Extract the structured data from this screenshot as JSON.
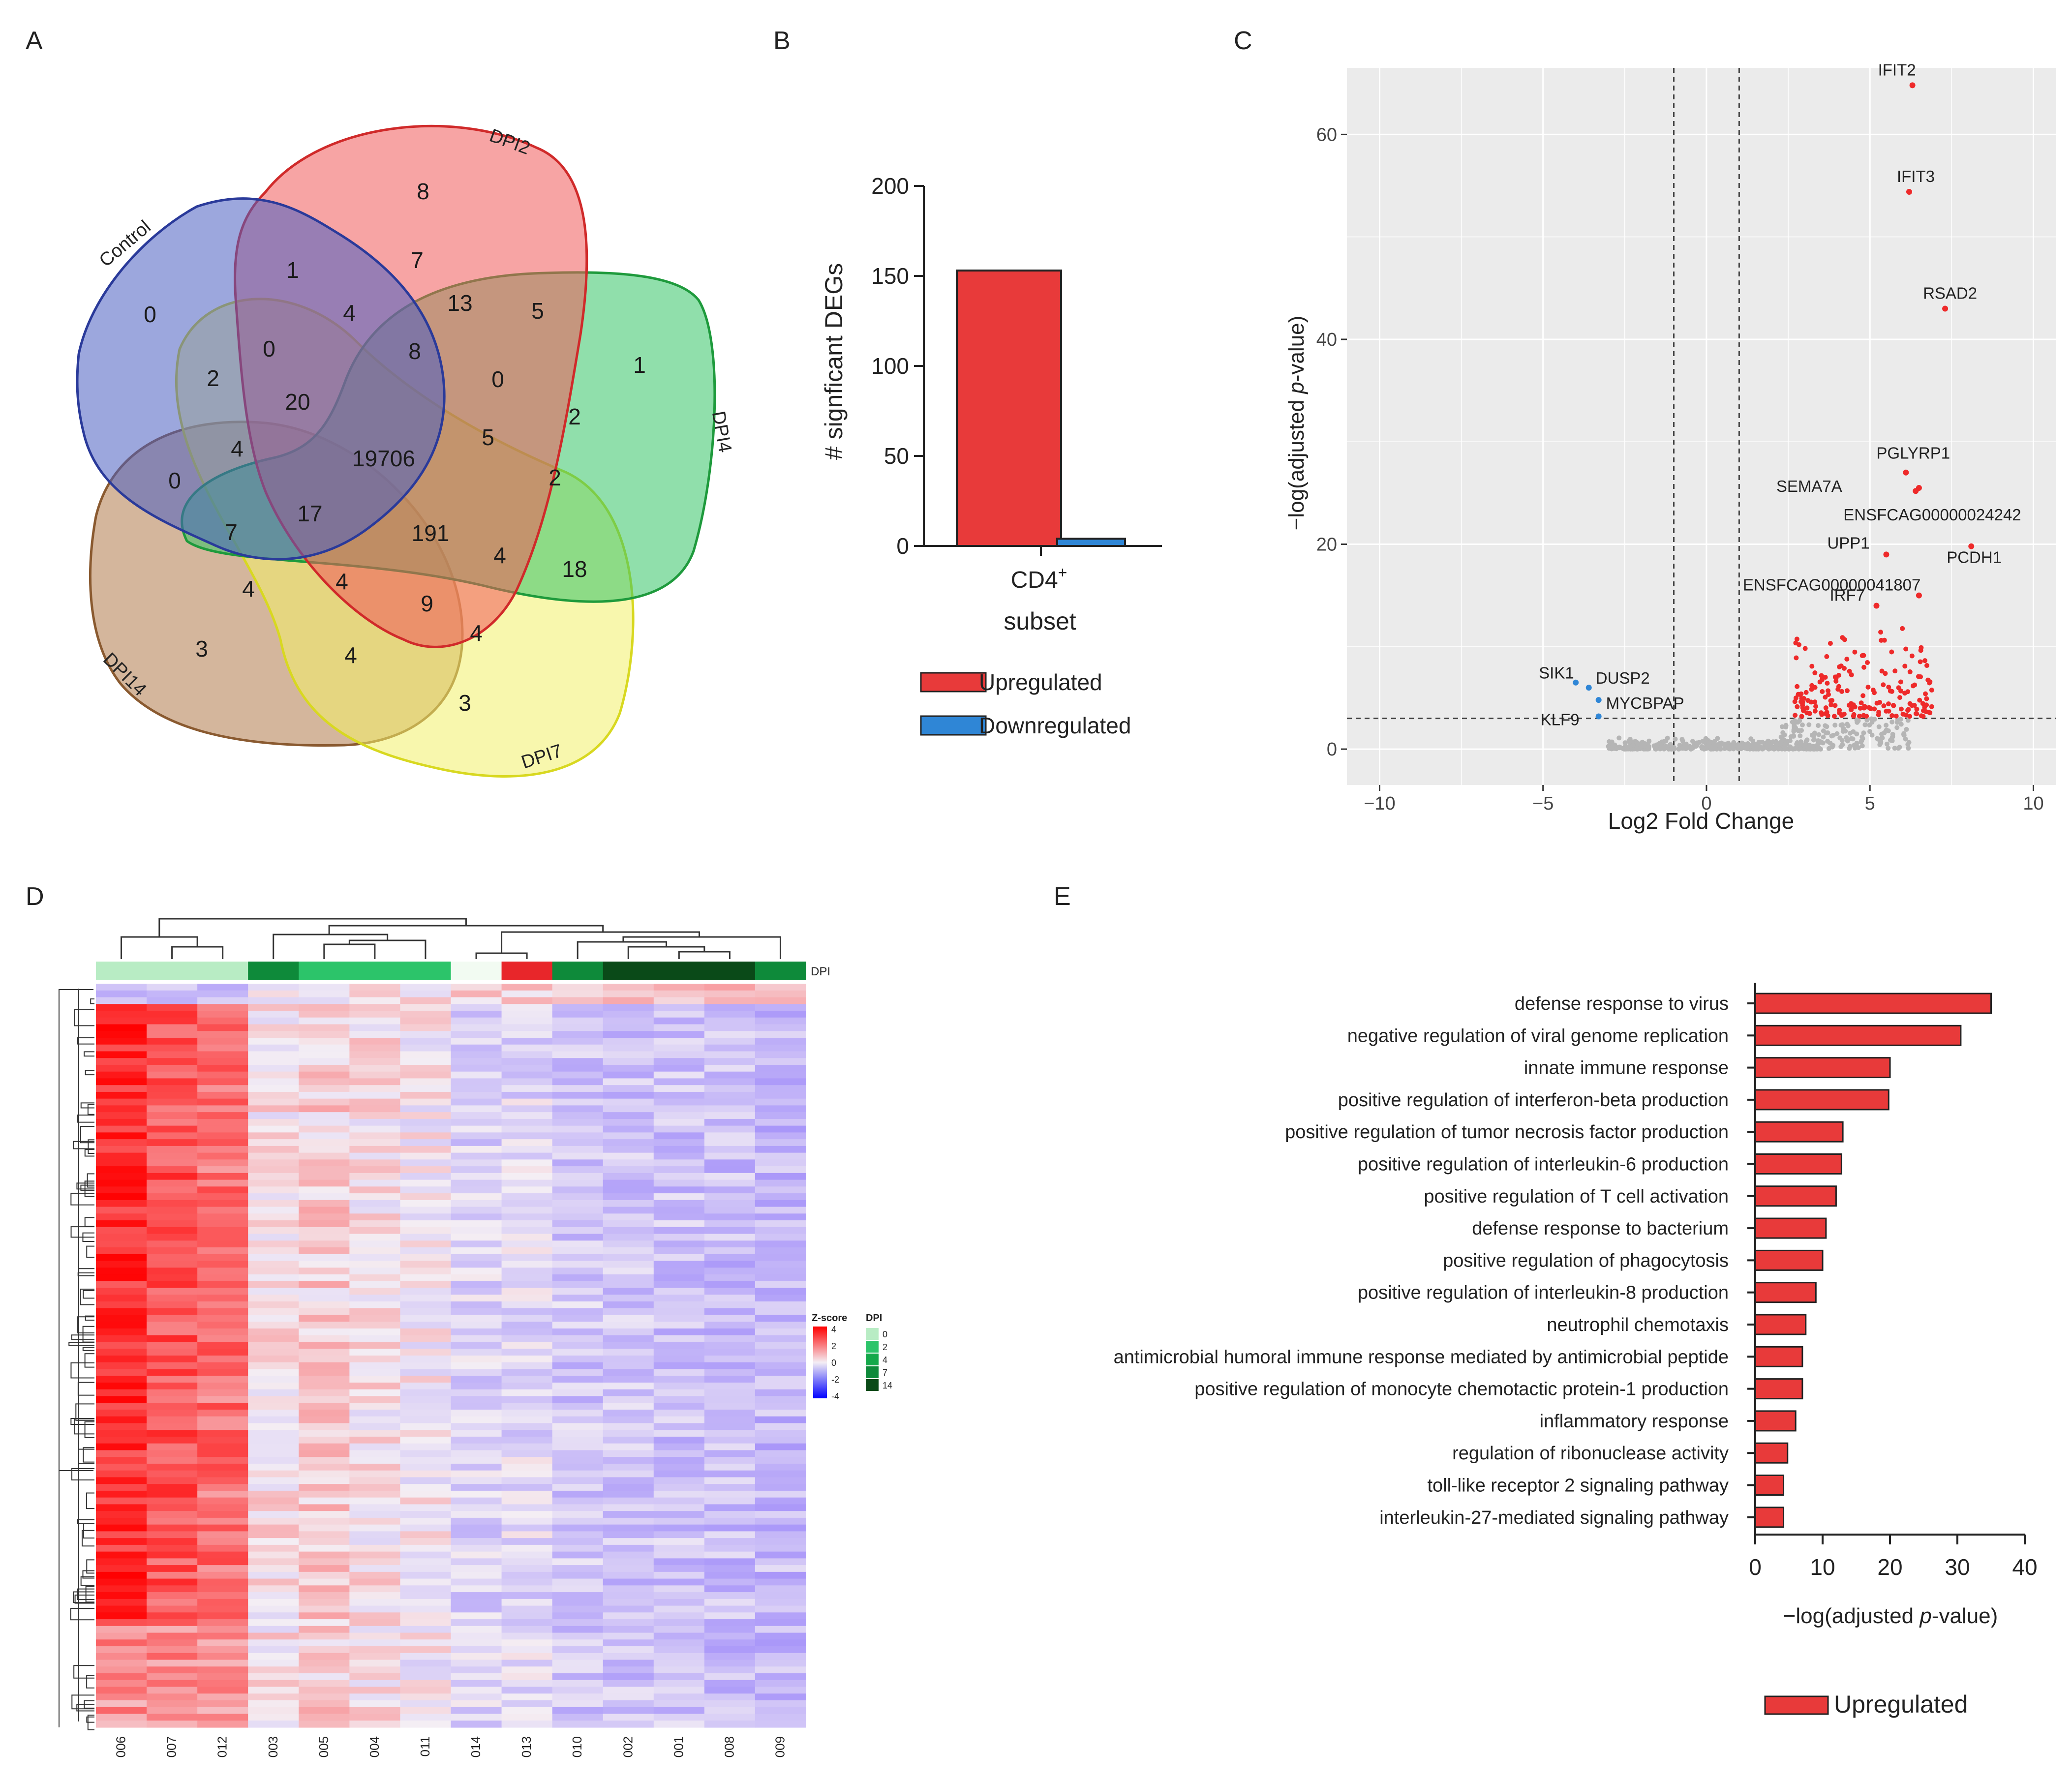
{
  "panel_labels": {
    "a": "A",
    "b": "B",
    "c": "C",
    "d": "D",
    "e": "E"
  },
  "chart_data": [
    {
      "panel": "A",
      "type": "venn",
      "sets": [
        {
          "name": "Control",
          "color": "#4a5fc1"
        },
        {
          "name": "DPI2",
          "color": "#f05a5a"
        },
        {
          "name": "DPI4",
          "color": "#34c466"
        },
        {
          "name": "DPI7",
          "color": "#f2f06a"
        },
        {
          "name": "DPI14",
          "color": "#b07a4a"
        }
      ],
      "counts": [
        "0",
        "8",
        "1",
        "3",
        "3",
        "1",
        "7",
        "13",
        "5",
        "4",
        "0",
        "8",
        "0",
        "2",
        "20",
        "2",
        "4",
        "19706",
        "5",
        "2",
        "0",
        "17",
        "191",
        "7",
        "4",
        "18",
        "4",
        "4",
        "9",
        "4",
        "4"
      ]
    },
    {
      "panel": "B",
      "type": "bar",
      "categories": [
        "CD4+"
      ],
      "x_tick_main": "CD4",
      "x_tick_sup": "+",
      "xlabel": "subset",
      "ylabel": "# signficant DEGs",
      "ylim": [
        0,
        200
      ],
      "yticks": [
        "0",
        "50",
        "100",
        "150",
        "200"
      ],
      "series": [
        {
          "name": "Upregulated",
          "values": [
            153
          ],
          "color": "#e83a3a"
        },
        {
          "name": "Downregulated",
          "values": [
            4
          ],
          "color": "#2f86d6"
        }
      ]
    },
    {
      "panel": "C",
      "type": "scatter",
      "xlabel": "Log2 Fold Change",
      "ylabel_pre": "−log(adjusted ",
      "ylabel_italic": "p",
      "ylabel_post": "-value)",
      "xlim": [
        -11,
        10.7
      ],
      "ylim": [
        -3.5,
        66.5
      ],
      "xticks": [
        "−10",
        "−5",
        "0",
        "5",
        "10"
      ],
      "yticks": [
        "0",
        "20",
        "40",
        "60"
      ],
      "thresholds": {
        "logfc": [
          -1,
          1
        ],
        "padj_log": 3
      },
      "labels": [
        {
          "text": "IFIT2",
          "x": 6.3,
          "y": 64.8
        },
        {
          "text": "IFIT3",
          "x": 6.2,
          "y": 54.4
        },
        {
          "text": "RSAD2",
          "x": 7.3,
          "y": 43.0
        },
        {
          "text": "PGLYRP1",
          "x": 6.1,
          "y": 27.0
        },
        {
          "text": "SEMA7A",
          "x": 6.5,
          "y": 25.5
        },
        {
          "text": "ENSFCAG00000024242",
          "x": 6.4,
          "y": 25.2
        },
        {
          "text": "UPP1",
          "x": 5.5,
          "y": 19.0
        },
        {
          "text": "PCDH1",
          "x": 8.1,
          "y": 19.8
        },
        {
          "text": "ENSFCAG00000041807",
          "x": 6.5,
          "y": 15.0
        },
        {
          "text": "IRF7",
          "x": 5.2,
          "y": 14.0
        },
        {
          "text": "SIK1",
          "x": -4.0,
          "y": 6.5
        },
        {
          "text": "DUSP2",
          "x": -3.6,
          "y": 6.0
        },
        {
          "text": "MYCBPAP",
          "x": -3.3,
          "y": 4.8
        },
        {
          "text": "KLF9",
          "x": -3.3,
          "y": 3.2
        }
      ]
    },
    {
      "panel": "D",
      "type": "heatmap",
      "samples": [
        "006",
        "007",
        "012",
        "003",
        "005",
        "004",
        "011",
        "014",
        "013",
        "010",
        "002",
        "001",
        "008",
        "009"
      ],
      "annotation_label": "DPI",
      "legend_zscore_title": "Z-score",
      "legend_zscore_ticks": [
        "4",
        "2",
        "0",
        "-2",
        "-4"
      ],
      "legend_dpi_title": "DPI",
      "legend_dpi_values": [
        "0",
        "2",
        "4",
        "7",
        "14"
      ]
    },
    {
      "panel": "E",
      "type": "bar",
      "orientation": "horizontal",
      "categories": [
        "defense response to virus",
        "negative regulation of viral genome replication",
        "innate immune response",
        "positive regulation of interferon-beta production",
        "positive regulation of tumor necrosis factor production",
        "positive regulation of interleukin-6 production",
        "positive regulation of T cell activation",
        "defense response to bacterium",
        "positive regulation of phagocytosis",
        "positive regulation of interleukin-8 production",
        "neutrophil chemotaxis",
        "antimicrobial humoral immune response mediated by antimicrobial peptide",
        "positive regulation of monocyte chemotactic protein-1 production",
        "inflammatory response",
        "regulation of ribonuclease activity",
        "toll-like receptor 2 signaling pathway",
        "interleukin-27-mediated signaling pathway"
      ],
      "values": [
        35,
        30.5,
        20,
        19.8,
        13,
        12.8,
        12,
        10.5,
        10,
        9,
        7.5,
        7,
        7,
        6,
        4.8,
        4.2,
        4.2
      ],
      "xlim": [
        0,
        40
      ],
      "xticks": [
        "0",
        "10",
        "20",
        "30",
        "40"
      ],
      "xlabel_pre": "−log(adjusted ",
      "xlabel_italic": "p",
      "xlabel_post": "-value)",
      "legend": "Upregulated",
      "color": "#e83a3a"
    }
  ]
}
